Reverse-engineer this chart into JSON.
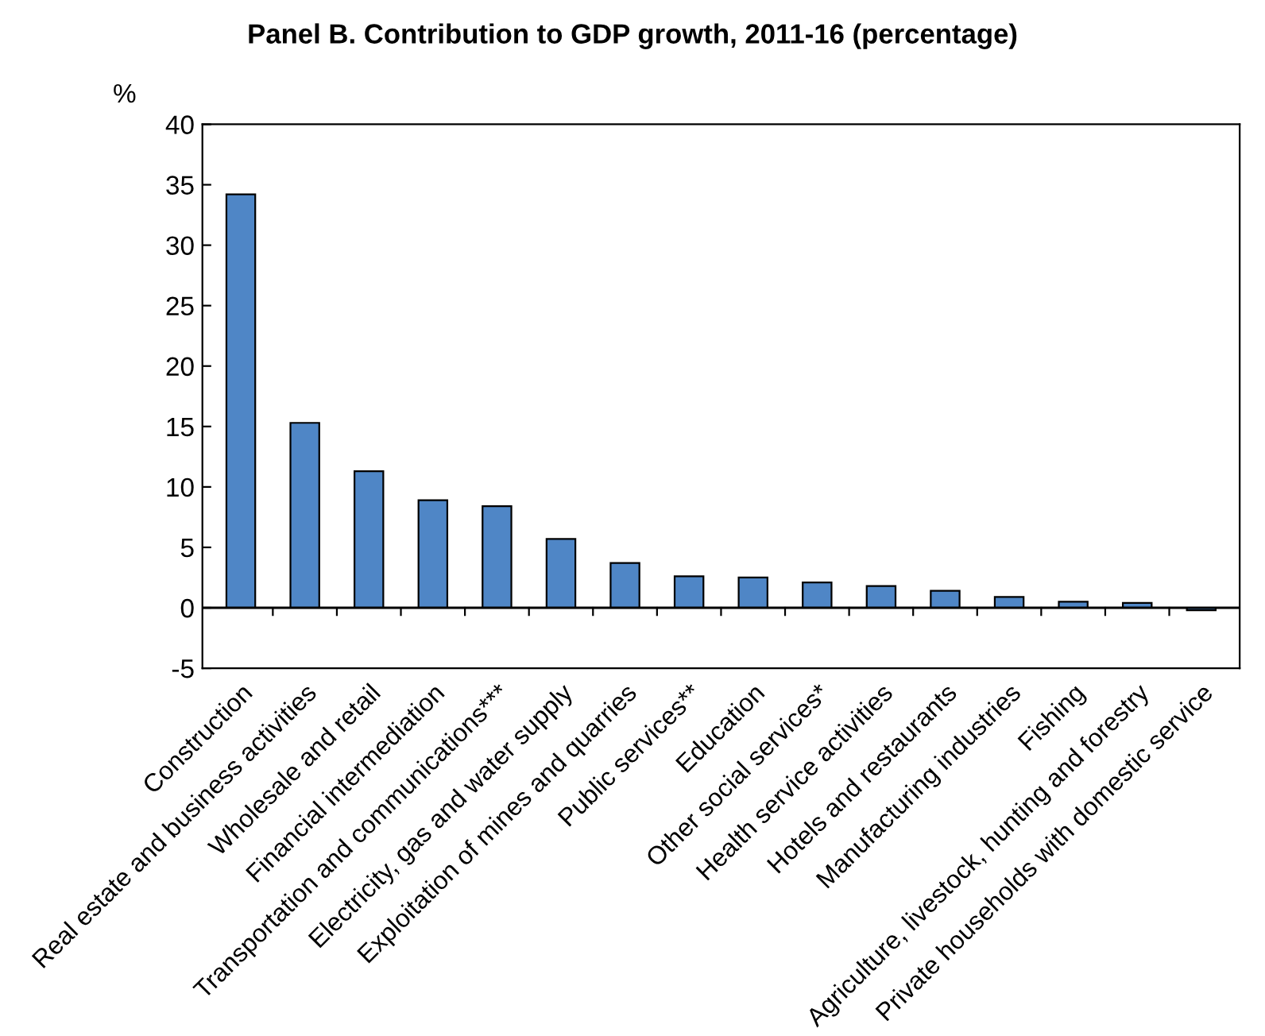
{
  "chart_data": {
    "type": "bar",
    "title": "Panel B. Contribution to GDP growth, 2011-16 (percentage)",
    "ylabel": "%",
    "categories": [
      "Construction",
      "Real estate and business activities",
      "Wholesale and retail",
      "Financial intermediation",
      "Transportation and communications***",
      "Electricity, gas and water supply",
      "Exploitation of mines and quarries",
      "Public services**",
      "Education",
      "Other social services*",
      "Health service activities",
      "Hotels and restaurants",
      "Manufacturing industries",
      "Fishing",
      "Agriculture, livestock, hunting and forestry",
      "Private households with domestic service"
    ],
    "values": [
      34.2,
      15.3,
      11.3,
      8.9,
      8.4,
      5.7,
      3.7,
      2.6,
      2.5,
      2.1,
      1.8,
      1.4,
      0.9,
      0.5,
      0.4,
      -0.2
    ],
    "color": "#4f86c6",
    "ylim": [
      -5,
      40
    ],
    "yticks": [
      -5,
      0,
      5,
      10,
      15,
      20,
      25,
      30,
      35,
      40
    ],
    "grid": false,
    "legend": false,
    "ref_lines": [
      {
        "axis": "y",
        "value": 0,
        "color": "#000000"
      }
    ]
  }
}
